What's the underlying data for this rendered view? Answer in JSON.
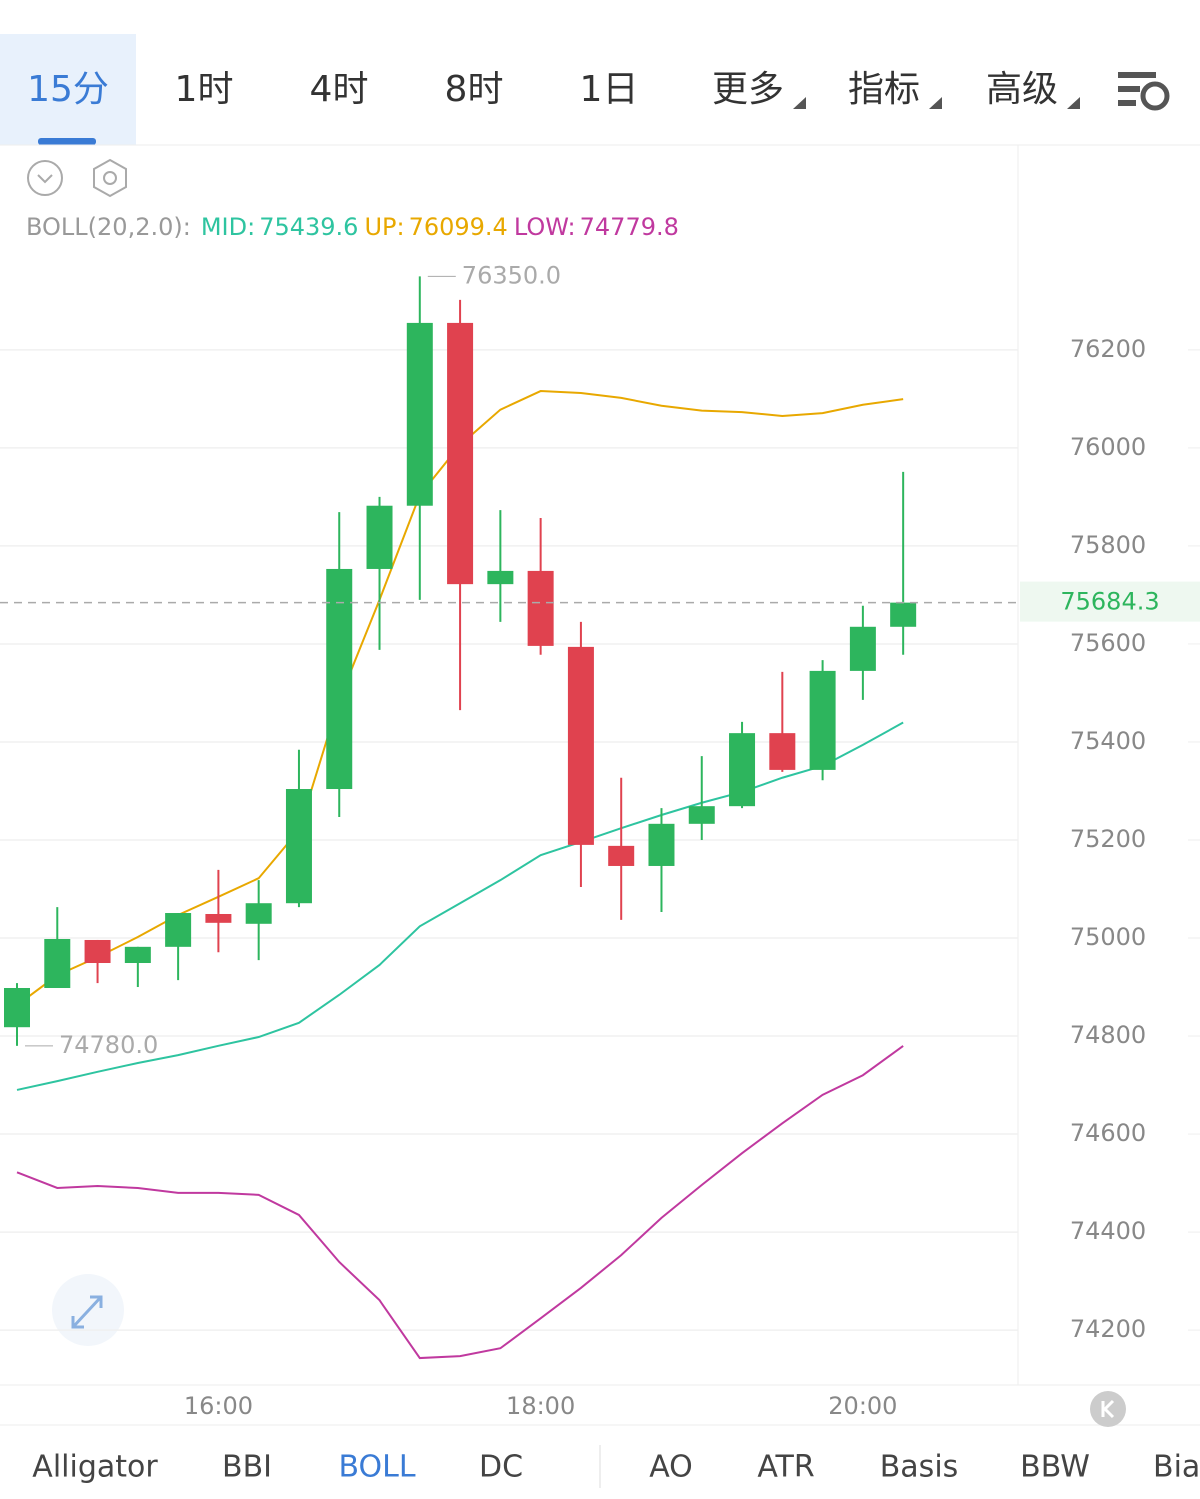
{
  "tabs": {
    "timeframes": [
      "15分",
      "1时",
      "4时",
      "8时",
      "1日"
    ],
    "menus": [
      "更多",
      "指标",
      "高级"
    ]
  },
  "chart_data": {
    "type": "candlestick",
    "indicator": "BOLL(20,2.0):",
    "categories": [
      null,
      null,
      null,
      null,
      null,
      "16:00",
      null,
      null,
      null,
      null,
      null,
      null,
      null,
      "18:00",
      null,
      null,
      null,
      null,
      null,
      null,
      null,
      "20:00",
      null
    ],
    "open": [
      74818,
      74898,
      74996,
      74949,
      74982,
      75049,
      75029,
      75071,
      75304,
      75753,
      75882,
      76255,
      75722,
      75749,
      75594,
      75188,
      75147,
      75233,
      75269,
      75418,
      75343,
      75545,
      75635
    ],
    "high": [
      74908,
      75063,
      74996,
      74982,
      75051,
      75139,
      75118,
      75384,
      75869,
      75900,
      76350,
      76302,
      75873,
      75857,
      75645,
      75327,
      75265,
      75371,
      75441,
      75543,
      75567,
      75678,
      75951
    ],
    "low": [
      74780,
      74898,
      74908,
      74900,
      74914,
      74971,
      74955,
      75063,
      75247,
      75588,
      75690,
      75465,
      75645,
      75578,
      75104,
      75037,
      75053,
      75200,
      75265,
      75339,
      75322,
      75486,
      75578
    ],
    "close": [
      74898,
      74998,
      74949,
      74982,
      75051,
      75031,
      75071,
      75304,
      75753,
      75882,
      76255,
      75722,
      75749,
      75596,
      75190,
      75147,
      75233,
      75269,
      75418,
      75343,
      75545,
      75635,
      75684.3
    ],
    "up_color": "#2db55d",
    "down_color": "#e0424f",
    "lines": [
      {
        "name": "MID:",
        "color": "#2ec4a0",
        "values": [
          74690,
          74708,
          74727,
          74745,
          74761,
          74780,
          74798,
          74827,
          74884,
          74945,
          75024,
          75071,
          75118,
          75169,
          75196,
          75224,
          75251,
          75276,
          75298,
          75327,
          75351,
          75394,
          75439.6
        ]
      },
      {
        "name": "UP:",
        "color": "#e8a800",
        "values": [
          74863,
          74924,
          74961,
          75002,
          75047,
          75084,
          75122,
          75220,
          75486,
          75690,
          75904,
          76006,
          76078,
          76116,
          76112,
          76102,
          76086,
          76076,
          76073,
          76065,
          76071,
          76088,
          76099.4
        ]
      },
      {
        "name": "LOW:",
        "color": "#c0399f",
        "values": [
          74522,
          74490,
          74494,
          74490,
          74480,
          74480,
          74476,
          74435,
          74339,
          74261,
          74143,
          74147,
          74163,
          74224,
          74286,
          74353,
          74429,
          74496,
          74561,
          74622,
          74680,
          74720,
          74779.8
        ]
      }
    ],
    "last_price": 75684.3,
    "annotations": [
      {
        "value": 76350,
        "label": "76350.0"
      },
      {
        "value": 74780,
        "label": "74780.0"
      }
    ],
    "ylim": [
      74088,
      76618
    ],
    "yticks": [
      74200,
      74400,
      74600,
      74800,
      75000,
      75200,
      75400,
      75600,
      75800,
      76000,
      76200
    ],
    "grid": true
  },
  "bottom_tabs": {
    "main": [
      "Alligator",
      "BBI",
      "BOLL",
      "DC"
    ],
    "sub": [
      "AO",
      "ATR",
      "Basis",
      "BBW",
      "Bias"
    ]
  }
}
